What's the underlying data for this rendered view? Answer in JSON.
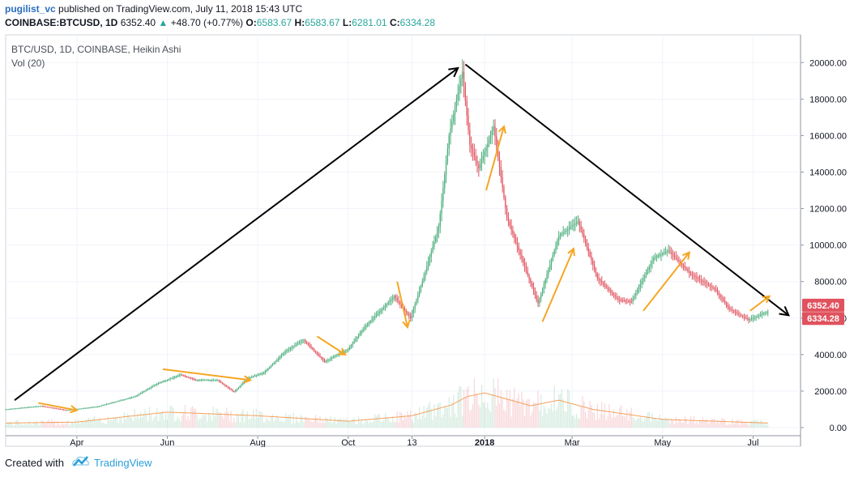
{
  "header": {
    "author": "pugilist_vc",
    "published_text": "published on TradingView.com, July 11, 2018 15:43 UTC"
  },
  "quote": {
    "symbol": "COINBASE:BTCUSD, 1D",
    "last": "6352.40",
    "change_icon": "triangle-up-icon",
    "change": "+48.70 (+0.77%)",
    "open_label": "O:",
    "open": "6583.67",
    "high_label": "H:",
    "high": "6583.67",
    "low_label": "L:",
    "low": "6281.01",
    "close_label": "C:",
    "close": "6334.28"
  },
  "legend": {
    "series_title": "BTC/USD, 1D, COINBASE, Heikin Ashi",
    "volume_title": "Vol (20)"
  },
  "footer": {
    "created_with": "Created with",
    "brand": "TradingView",
    "logo_icon": "tradingview-cloud-icon"
  },
  "colors": {
    "up": "#4cae7d",
    "down": "#e0525e",
    "trend_arrow": "#000000",
    "swing_arrow": "#f5a623",
    "volume_ma": "#f5a05a",
    "price_badge_top": "#e0525e",
    "price_badge_bottom": "#e0525e"
  },
  "chart_data": {
    "type": "heikin-ashi candlestick",
    "title": "BTC/USD, 1D, COINBASE, Heikin Ashi",
    "x_tick_labels": [
      "Apr",
      "Jun",
      "Aug",
      "Oct",
      "13",
      "2018",
      "Mar",
      "May",
      "Jul"
    ],
    "x_tick_dates": [
      "2017-04-01",
      "2017-06-01",
      "2017-08-01",
      "2017-10-01",
      "2017-11-13",
      "2018-01-01",
      "2018-03-01",
      "2018-05-01",
      "2018-07-01"
    ],
    "y_tick_labels": [
      "0.00",
      "2000.00",
      "4000.00",
      "6000.00",
      "8000.00",
      "10000.00",
      "12000.00",
      "14000.00",
      "16000.00",
      "18000.00",
      "20000.00"
    ],
    "ylim": [
      0,
      20500
    ],
    "xlim": [
      "2017-02-12",
      "2018-08-02"
    ],
    "price_labels": [
      "6352.40",
      "6334.28"
    ],
    "price_levels": [
      6352.4,
      6334.28
    ],
    "price_series": [
      {
        "date": "2017-02-12",
        "value": 1000
      },
      {
        "date": "2017-03-08",
        "value": 1180
      },
      {
        "date": "2017-03-25",
        "value": 950
      },
      {
        "date": "2017-04-15",
        "value": 1150
      },
      {
        "date": "2017-05-10",
        "value": 1700
      },
      {
        "date": "2017-05-25",
        "value": 2400
      },
      {
        "date": "2017-06-10",
        "value": 2900
      },
      {
        "date": "2017-06-20",
        "value": 2600
      },
      {
        "date": "2017-07-05",
        "value": 2600
      },
      {
        "date": "2017-07-16",
        "value": 1950
      },
      {
        "date": "2017-07-25",
        "value": 2700
      },
      {
        "date": "2017-08-05",
        "value": 3000
      },
      {
        "date": "2017-08-20",
        "value": 4200
      },
      {
        "date": "2017-09-01",
        "value": 4800
      },
      {
        "date": "2017-09-15",
        "value": 3600
      },
      {
        "date": "2017-10-01",
        "value": 4300
      },
      {
        "date": "2017-10-12",
        "value": 5500
      },
      {
        "date": "2017-11-01",
        "value": 7200
      },
      {
        "date": "2017-11-12",
        "value": 6000
      },
      {
        "date": "2017-11-20",
        "value": 8000
      },
      {
        "date": "2017-12-01",
        "value": 11000
      },
      {
        "date": "2017-12-08",
        "value": 16000
      },
      {
        "date": "2017-12-17",
        "value": 19500
      },
      {
        "date": "2017-12-22",
        "value": 15500
      },
      {
        "date": "2017-12-28",
        "value": 14200
      },
      {
        "date": "2018-01-07",
        "value": 16500
      },
      {
        "date": "2018-01-16",
        "value": 11500
      },
      {
        "date": "2018-02-06",
        "value": 6800
      },
      {
        "date": "2018-02-20",
        "value": 10500
      },
      {
        "date": "2018-03-05",
        "value": 11300
      },
      {
        "date": "2018-03-18",
        "value": 8200
      },
      {
        "date": "2018-04-01",
        "value": 7000
      },
      {
        "date": "2018-04-10",
        "value": 6900
      },
      {
        "date": "2018-04-25",
        "value": 9300
      },
      {
        "date": "2018-05-05",
        "value": 9700
      },
      {
        "date": "2018-05-20",
        "value": 8400
      },
      {
        "date": "2018-06-05",
        "value": 7600
      },
      {
        "date": "2018-06-15",
        "value": 6500
      },
      {
        "date": "2018-06-28",
        "value": 5900
      },
      {
        "date": "2018-07-11",
        "value": 6350
      }
    ],
    "volume_ma_series": [
      {
        "date": "2017-02-12",
        "value": 250
      },
      {
        "date": "2017-04-01",
        "value": 300
      },
      {
        "date": "2017-06-01",
        "value": 850
      },
      {
        "date": "2017-08-01",
        "value": 650
      },
      {
        "date": "2017-10-01",
        "value": 350
      },
      {
        "date": "2017-11-13",
        "value": 650
      },
      {
        "date": "2017-12-10",
        "value": 1250
      },
      {
        "date": "2017-12-20",
        "value": 1700
      },
      {
        "date": "2018-01-01",
        "value": 1900
      },
      {
        "date": "2018-02-01",
        "value": 1200
      },
      {
        "date": "2018-02-20",
        "value": 1500
      },
      {
        "date": "2018-03-15",
        "value": 1000
      },
      {
        "date": "2018-05-01",
        "value": 450
      },
      {
        "date": "2018-07-11",
        "value": 250
      }
    ],
    "annotations": {
      "trend_arrows": [
        {
          "from": [
            "2017-02-18",
            1500
          ],
          "to": [
            "2017-12-14",
            19700
          ]
        },
        {
          "from": [
            "2017-12-19",
            19900
          ],
          "to": [
            "2018-07-25",
            6150
          ]
        }
      ],
      "swing_arrows": [
        {
          "from": [
            "2017-03-06",
            1350
          ],
          "to": [
            "2017-04-01",
            950
          ]
        },
        {
          "from": [
            "2017-05-29",
            3200
          ],
          "to": [
            "2017-07-27",
            2600
          ]
        },
        {
          "from": [
            "2017-09-10",
            5000
          ],
          "to": [
            "2017-09-29",
            4000
          ]
        },
        {
          "from": [
            "2017-11-03",
            8000
          ],
          "to": [
            "2017-11-10",
            5500
          ]
        },
        {
          "from": [
            "2018-01-02",
            13000
          ],
          "to": [
            "2018-01-14",
            16500
          ]
        },
        {
          "from": [
            "2018-02-09",
            5800
          ],
          "to": [
            "2018-03-02",
            9800
          ]
        },
        {
          "from": [
            "2018-04-18",
            6400
          ],
          "to": [
            "2018-05-19",
            9600
          ]
        },
        {
          "from": [
            "2018-06-29",
            6400
          ],
          "to": [
            "2018-07-12",
            7200
          ]
        }
      ]
    }
  }
}
